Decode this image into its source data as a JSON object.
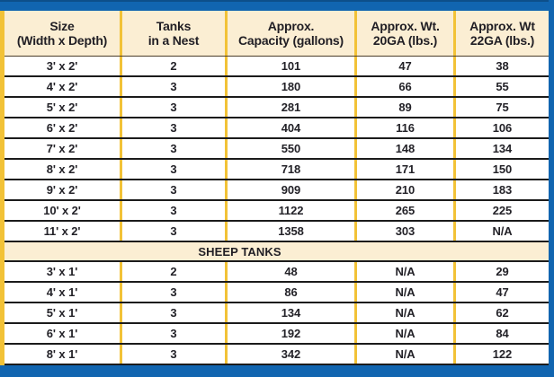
{
  "table": {
    "headers": [
      {
        "line1": "Size",
        "line2": "(Width x Depth)"
      },
      {
        "line1": "Tanks",
        "line2": "in a Nest"
      },
      {
        "line1": "Approx.",
        "line2": "Capacity (gallons)"
      },
      {
        "line1": "Approx. Wt.",
        "line2": "20GA (lbs.)"
      },
      {
        "line1": "Approx. Wt",
        "line2": "22GA (lbs.)"
      }
    ],
    "stock_rows": [
      {
        "size": "3' x 2'",
        "nest": "2",
        "capacity": "101",
        "wt20": "47",
        "wt22": "38"
      },
      {
        "size": "4' x 2'",
        "nest": "3",
        "capacity": "180",
        "wt20": "66",
        "wt22": "55"
      },
      {
        "size": "5' x 2'",
        "nest": "3",
        "capacity": "281",
        "wt20": "89",
        "wt22": "75"
      },
      {
        "size": "6' x 2'",
        "nest": "3",
        "capacity": "404",
        "wt20": "116",
        "wt22": "106"
      },
      {
        "size": "7' x 2'",
        "nest": "3",
        "capacity": "550",
        "wt20": "148",
        "wt22": "134"
      },
      {
        "size": "8' x 2'",
        "nest": "3",
        "capacity": "718",
        "wt20": "171",
        "wt22": "150"
      },
      {
        "size": "9' x 2'",
        "nest": "3",
        "capacity": "909",
        "wt20": "210",
        "wt22": "183"
      },
      {
        "size": "10' x 2'",
        "nest": "3",
        "capacity": "1122",
        "wt20": "265",
        "wt22": "225"
      },
      {
        "size": "11' x 2'",
        "nest": "3",
        "capacity": "1358",
        "wt20": "303",
        "wt22": "N/A"
      }
    ],
    "section_label": "SHEEP TANKS",
    "sheep_rows": [
      {
        "size": "3' x 1'",
        "nest": "2",
        "capacity": "48",
        "wt20": "N/A",
        "wt22": "29"
      },
      {
        "size": "4' x 1'",
        "nest": "3",
        "capacity": "86",
        "wt20": "N/A",
        "wt22": "47"
      },
      {
        "size": "5' x 1'",
        "nest": "3",
        "capacity": "134",
        "wt20": "N/A",
        "wt22": "62"
      },
      {
        "size": "6' x 1'",
        "nest": "3",
        "capacity": "192",
        "wt20": "N/A",
        "wt22": "84"
      },
      {
        "size": "8' x 1'",
        "nest": "3",
        "capacity": "342",
        "wt20": "N/A",
        "wt22": "122"
      }
    ]
  },
  "colors": {
    "frame_blue": "#1165b0",
    "header_cream": "#fbeed3",
    "divider_gold": "#f2c237",
    "row_line": "#1b1b1b",
    "text": "#232228"
  },
  "chart_data": {
    "type": "table",
    "title": "Stock tank specifications",
    "columns": [
      "Size (Width x Depth)",
      "Tanks in a Nest",
      "Approx. Capacity (gallons)",
      "Approx. Wt. 20GA (lbs.)",
      "Approx. Wt 22GA (lbs.)"
    ],
    "sections": [
      {
        "label": "",
        "rows": [
          [
            "3' x 2'",
            2,
            101,
            47,
            38
          ],
          [
            "4' x 2'",
            3,
            180,
            66,
            55
          ],
          [
            "5' x 2'",
            3,
            281,
            89,
            75
          ],
          [
            "6' x 2'",
            3,
            404,
            116,
            106
          ],
          [
            "7' x 2'",
            3,
            550,
            148,
            134
          ],
          [
            "8' x 2'",
            3,
            718,
            171,
            150
          ],
          [
            "9' x 2'",
            3,
            909,
            210,
            183
          ],
          [
            "10' x 2'",
            3,
            1122,
            265,
            225
          ],
          [
            "11' x 2'",
            3,
            1358,
            303,
            "N/A"
          ]
        ]
      },
      {
        "label": "SHEEP TANKS",
        "rows": [
          [
            "3' x 1'",
            2,
            48,
            "N/A",
            29
          ],
          [
            "4' x 1'",
            3,
            86,
            "N/A",
            47
          ],
          [
            "5' x 1'",
            3,
            134,
            "N/A",
            62
          ],
          [
            "6' x 1'",
            3,
            192,
            "N/A",
            84
          ],
          [
            "8' x 1'",
            3,
            342,
            "N/A",
            122
          ]
        ]
      }
    ]
  }
}
